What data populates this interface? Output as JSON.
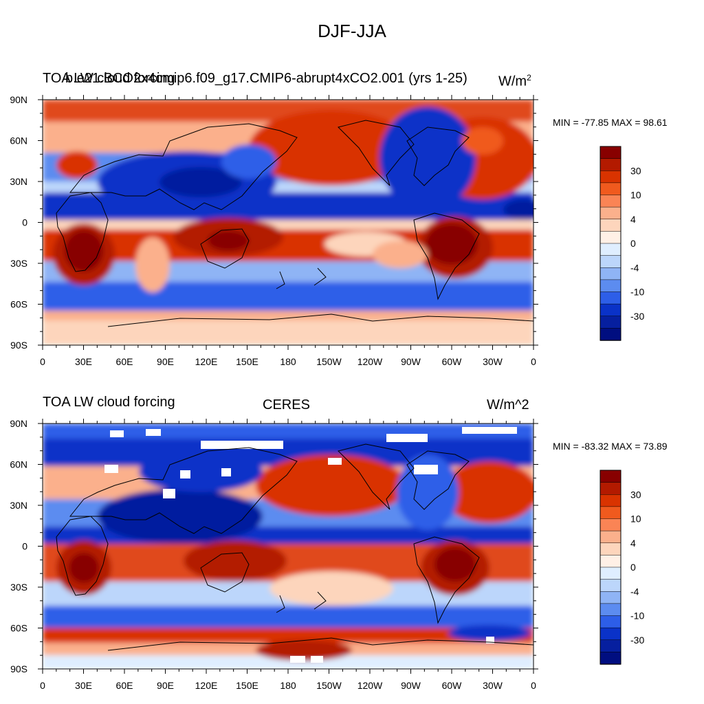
{
  "figure": {
    "title": "DJF-JJA"
  },
  "panels": [
    {
      "left_title": "TOA LW cloud forcing",
      "center_title": "b.e21.BCO2x4cmip6.f09_g17.CMIP6-abrupt4xCO2.001 (yrs 1-25)",
      "units": "W/m",
      "units_superscript": "2",
      "min_max": "MIN = -77.85 MAX =  98.61"
    },
    {
      "left_title": "TOA LW cloud forcing",
      "center_title": "CERES",
      "units": "W/m^2",
      "min_max": "MIN = -83.32 MAX =  73.89"
    }
  ],
  "chart_data": [
    {
      "type": "heatmap",
      "title": "b.e21.BCO2x4cmip6.f09_g17.CMIP6-abrupt4xCO2.001 (yrs 1-25)",
      "variable": "TOA LW cloud forcing difference (DJF-JJA)",
      "units": "W/m^2",
      "min": -77.85,
      "max": 98.61,
      "x_ticks": [
        "0",
        "30E",
        "60E",
        "90E",
        "120E",
        "150E",
        "180",
        "150W",
        "120W",
        "90W",
        "60W",
        "30W",
        "0"
      ],
      "y_ticks": [
        "90N",
        "60N",
        "30N",
        "0",
        "30S",
        "60S",
        "90S"
      ],
      "colorbar_levels": [
        -40,
        -30,
        -20,
        -10,
        -7,
        -4,
        -2,
        0,
        2,
        4,
        7,
        10,
        20,
        30,
        40
      ],
      "colorbar_labels": [
        "30",
        "10",
        "4",
        "0",
        "-4",
        "-10",
        "-30"
      ],
      "colorbar_colors": [
        "#880000",
        "#b31a00",
        "#d93300",
        "#f05a1e",
        "#fa8455",
        "#fbb08c",
        "#fdd5bc",
        "#fff0e6",
        "#dfeeff",
        "#bcd6fb",
        "#8fb4f5",
        "#5c8cf0",
        "#2d5ee8",
        "#0a32c8",
        "#061f9f",
        "#000e80"
      ]
    },
    {
      "type": "heatmap",
      "title": "CERES",
      "variable": "TOA LW cloud forcing difference (DJF-JJA)",
      "units": "W/m^2",
      "min": -83.32,
      "max": 73.89,
      "x_ticks": [
        "0",
        "30E",
        "60E",
        "90E",
        "120E",
        "150E",
        "180",
        "150W",
        "120W",
        "90W",
        "60W",
        "30W",
        "0"
      ],
      "y_ticks": [
        "90N",
        "60N",
        "30N",
        "0",
        "30S",
        "60S",
        "90S"
      ],
      "colorbar_levels": [
        -40,
        -30,
        -20,
        -10,
        -7,
        -4,
        -2,
        0,
        2,
        4,
        7,
        10,
        20,
        30,
        40
      ],
      "colorbar_labels": [
        "30",
        "10",
        "4",
        "0",
        "-4",
        "-10",
        "-30"
      ],
      "colorbar_colors": [
        "#880000",
        "#b31a00",
        "#d93300",
        "#f05a1e",
        "#fa8455",
        "#fbb08c",
        "#fdd5bc",
        "#fff0e6",
        "#dfeeff",
        "#bcd6fb",
        "#8fb4f5",
        "#5c8cf0",
        "#2d5ee8",
        "#0a32c8",
        "#061f9f",
        "#000e80"
      ]
    }
  ]
}
